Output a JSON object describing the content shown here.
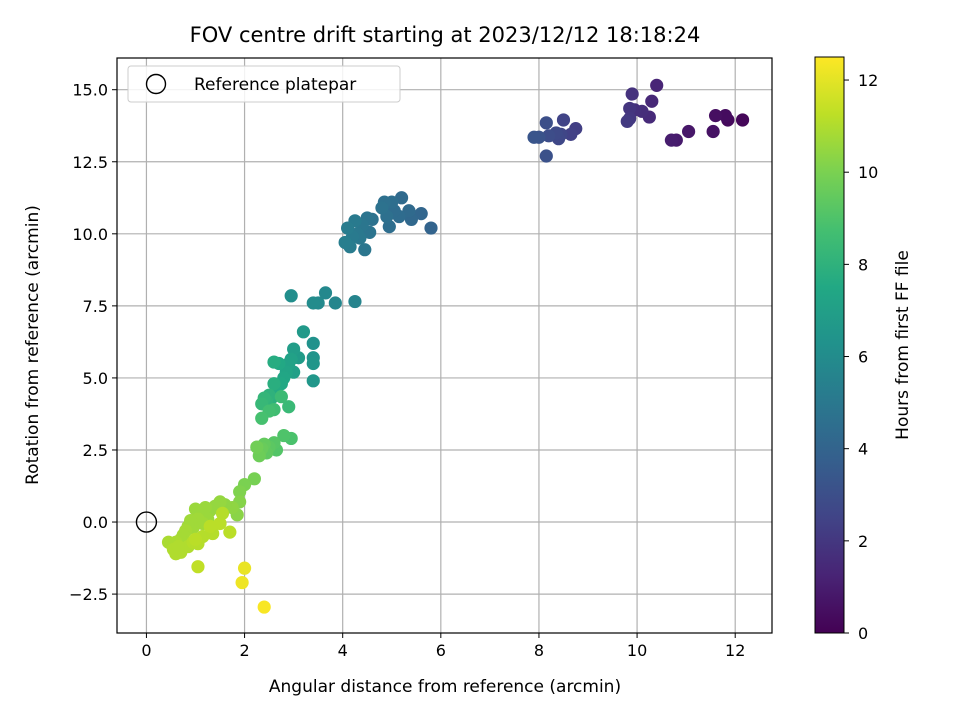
{
  "chart_data": {
    "type": "scatter",
    "title": "FOV centre drift starting at 2023/12/12 18:18:24",
    "xlabel": "Angular distance from reference (arcmin)",
    "ylabel": "Rotation from reference (arcmin)",
    "xlim": [
      -0.6,
      12.75
    ],
    "ylim": [
      -3.85,
      16.1
    ],
    "xticks": [
      0,
      2,
      4,
      6,
      8,
      10,
      12
    ],
    "yticks": [
      -2.5,
      0.0,
      2.5,
      5.0,
      7.5,
      10.0,
      12.5,
      15.0
    ],
    "xtick_labels": [
      "0",
      "2",
      "4",
      "6",
      "8",
      "10",
      "12"
    ],
    "ytick_labels": [
      "−2.5",
      "0.0",
      "2.5",
      "5.0",
      "7.5",
      "10.0",
      "12.5",
      "15.0"
    ],
    "grid": true,
    "legend": {
      "position": "top-left",
      "entries": [
        {
          "label": "Reference platepar",
          "marker": "open-circle"
        }
      ]
    },
    "reference_point": {
      "x": 0,
      "y": 0
    },
    "colorbar": {
      "label": "Hours from first FF file",
      "range": [
        0,
        12.5
      ],
      "ticks": [
        0,
        2,
        4,
        6,
        8,
        10,
        12
      ],
      "tick_labels": [
        "0",
        "2",
        "4",
        "6",
        "8",
        "10",
        "12"
      ],
      "colormap": "viridis"
    },
    "points": [
      [
        12.15,
        13.95,
        0.2
      ],
      [
        11.85,
        13.95,
        0.3
      ],
      [
        11.8,
        14.1,
        0.4
      ],
      [
        11.6,
        14.1,
        0.5
      ],
      [
        11.55,
        13.55,
        0.6
      ],
      [
        11.05,
        13.55,
        0.8
      ],
      [
        10.8,
        13.25,
        0.9
      ],
      [
        10.7,
        13.25,
        1.0
      ],
      [
        10.4,
        15.15,
        1.3
      ],
      [
        10.3,
        14.6,
        1.4
      ],
      [
        10.25,
        14.05,
        1.5
      ],
      [
        10.1,
        14.25,
        1.6
      ],
      [
        9.95,
        14.3,
        1.7
      ],
      [
        9.9,
        14.85,
        1.8
      ],
      [
        9.85,
        14.35,
        1.9
      ],
      [
        9.85,
        14.0,
        2.0
      ],
      [
        9.8,
        13.9,
        2.1
      ],
      [
        8.75,
        13.65,
        2.3
      ],
      [
        8.65,
        13.45,
        2.4
      ],
      [
        8.5,
        13.95,
        2.5
      ],
      [
        8.45,
        13.45,
        2.6
      ],
      [
        8.4,
        13.3,
        2.7
      ],
      [
        8.35,
        13.5,
        2.8
      ],
      [
        8.2,
        13.4,
        2.9
      ],
      [
        8.15,
        13.85,
        3.0
      ],
      [
        8.15,
        12.7,
        3.1
      ],
      [
        8.0,
        13.35,
        3.2
      ],
      [
        7.9,
        13.35,
        3.3
      ],
      [
        5.8,
        10.2,
        4.0
      ],
      [
        5.6,
        10.7,
        4.1
      ],
      [
        5.4,
        10.5,
        4.2
      ],
      [
        5.35,
        10.8,
        4.3
      ],
      [
        5.2,
        11.25,
        4.3
      ],
      [
        5.15,
        10.6,
        4.4
      ],
      [
        5.05,
        10.8,
        4.4
      ],
      [
        5.0,
        11.1,
        4.5
      ],
      [
        4.95,
        10.25,
        4.5
      ],
      [
        4.9,
        10.6,
        4.6
      ],
      [
        4.85,
        11.1,
        4.6
      ],
      [
        4.8,
        10.9,
        4.7
      ],
      [
        4.6,
        10.5,
        4.7
      ],
      [
        4.55,
        10.05,
        4.8
      ],
      [
        4.5,
        10.55,
        4.8
      ],
      [
        4.45,
        9.45,
        4.9
      ],
      [
        4.4,
        10.3,
        4.9
      ],
      [
        4.35,
        9.85,
        5.0
      ],
      [
        4.3,
        10.0,
        5.0
      ],
      [
        4.25,
        10.45,
        5.1
      ],
      [
        4.2,
        9.9,
        5.1
      ],
      [
        4.15,
        9.55,
        5.2
      ],
      [
        4.1,
        10.2,
        5.2
      ],
      [
        4.05,
        9.7,
        5.3
      ],
      [
        4.25,
        7.65,
        5.6
      ],
      [
        3.85,
        7.6,
        5.7
      ],
      [
        3.65,
        7.95,
        5.8
      ],
      [
        3.5,
        7.6,
        5.9
      ],
      [
        3.4,
        7.6,
        6.0
      ],
      [
        2.95,
        7.85,
        6.1
      ],
      [
        3.4,
        6.2,
        6.3
      ],
      [
        3.4,
        5.7,
        6.4
      ],
      [
        3.4,
        5.5,
        6.5
      ],
      [
        3.4,
        4.9,
        6.6
      ],
      [
        3.2,
        6.6,
        6.7
      ],
      [
        3.1,
        5.7,
        6.8
      ],
      [
        3.0,
        6.0,
        6.9
      ],
      [
        3.0,
        5.2,
        7.0
      ],
      [
        2.95,
        5.65,
        7.1
      ],
      [
        2.9,
        5.5,
        7.2
      ],
      [
        2.85,
        5.2,
        7.3
      ],
      [
        2.8,
        5.0,
        7.4
      ],
      [
        2.75,
        4.8,
        7.5
      ],
      [
        2.7,
        5.5,
        7.5
      ],
      [
        2.65,
        4.5,
        7.6
      ],
      [
        2.6,
        5.55,
        7.7
      ],
      [
        2.6,
        4.8,
        7.8
      ],
      [
        2.55,
        4.3,
        7.9
      ],
      [
        2.5,
        4.4,
        8.0
      ],
      [
        2.45,
        4.2,
        8.1
      ],
      [
        2.4,
        4.3,
        8.2
      ],
      [
        2.35,
        4.1,
        8.3
      ],
      [
        2.9,
        4.0,
        8.4
      ],
      [
        2.75,
        4.35,
        8.5
      ],
      [
        2.6,
        3.9,
        8.6
      ],
      [
        2.5,
        3.85,
        8.7
      ],
      [
        2.35,
        3.6,
        8.8
      ],
      [
        2.95,
        2.9,
        8.9
      ],
      [
        2.8,
        3.0,
        9.0
      ],
      [
        2.65,
        2.5,
        9.1
      ],
      [
        2.6,
        2.75,
        9.2
      ],
      [
        2.5,
        2.6,
        9.3
      ],
      [
        2.45,
        2.4,
        9.4
      ],
      [
        2.4,
        2.7,
        9.5
      ],
      [
        2.35,
        2.55,
        9.6
      ],
      [
        2.3,
        2.3,
        9.7
      ],
      [
        2.25,
        2.6,
        9.8
      ],
      [
        2.2,
        1.5,
        9.9
      ],
      [
        2.0,
        1.3,
        10.0
      ],
      [
        1.9,
        1.05,
        10.1
      ],
      [
        1.9,
        0.7,
        10.2
      ],
      [
        1.85,
        0.25,
        10.3
      ],
      [
        1.75,
        0.5,
        10.4
      ],
      [
        1.6,
        0.6,
        10.4
      ],
      [
        1.5,
        0.7,
        10.5
      ],
      [
        1.4,
        0.55,
        10.5
      ],
      [
        1.3,
        0.4,
        10.5
      ],
      [
        1.2,
        0.5,
        10.6
      ],
      [
        1.1,
        0.3,
        10.6
      ],
      [
        1.0,
        0.45,
        10.6
      ],
      [
        1.25,
        0.1,
        10.6
      ],
      [
        1.15,
        -0.05,
        10.7
      ],
      [
        1.05,
        0.1,
        10.7
      ],
      [
        0.95,
        -0.2,
        10.7
      ],
      [
        0.9,
        0.05,
        10.7
      ],
      [
        0.85,
        -0.15,
        10.7
      ],
      [
        0.8,
        -0.3,
        10.8
      ],
      [
        0.75,
        -0.45,
        10.8
      ],
      [
        0.7,
        -0.6,
        10.8
      ],
      [
        0.6,
        -0.7,
        10.9
      ],
      [
        0.5,
        -0.75,
        10.9
      ],
      [
        0.45,
        -0.7,
        10.9
      ],
      [
        0.55,
        -0.95,
        11.0
      ],
      [
        0.6,
        -1.1,
        11.0
      ],
      [
        0.7,
        -1.05,
        11.0
      ],
      [
        0.85,
        -0.85,
        11.0
      ],
      [
        0.95,
        -0.7,
        11.1
      ],
      [
        1.05,
        -0.75,
        11.1
      ],
      [
        1.15,
        -0.5,
        11.1
      ],
      [
        1.35,
        -0.4,
        11.1
      ],
      [
        1.5,
        -0.05,
        11.2
      ],
      [
        1.7,
        -0.35,
        11.2
      ],
      [
        1.05,
        -1.55,
        11.3
      ],
      [
        1.0,
        -0.6,
        11.2
      ],
      [
        1.3,
        -0.15,
        11.2
      ],
      [
        1.55,
        0.3,
        11.1
      ],
      [
        0.65,
        -0.85,
        11.0
      ],
      [
        2.0,
        -1.6,
        12.1
      ],
      [
        1.95,
        -2.1,
        12.2
      ],
      [
        2.4,
        -2.95,
        12.4
      ]
    ]
  }
}
